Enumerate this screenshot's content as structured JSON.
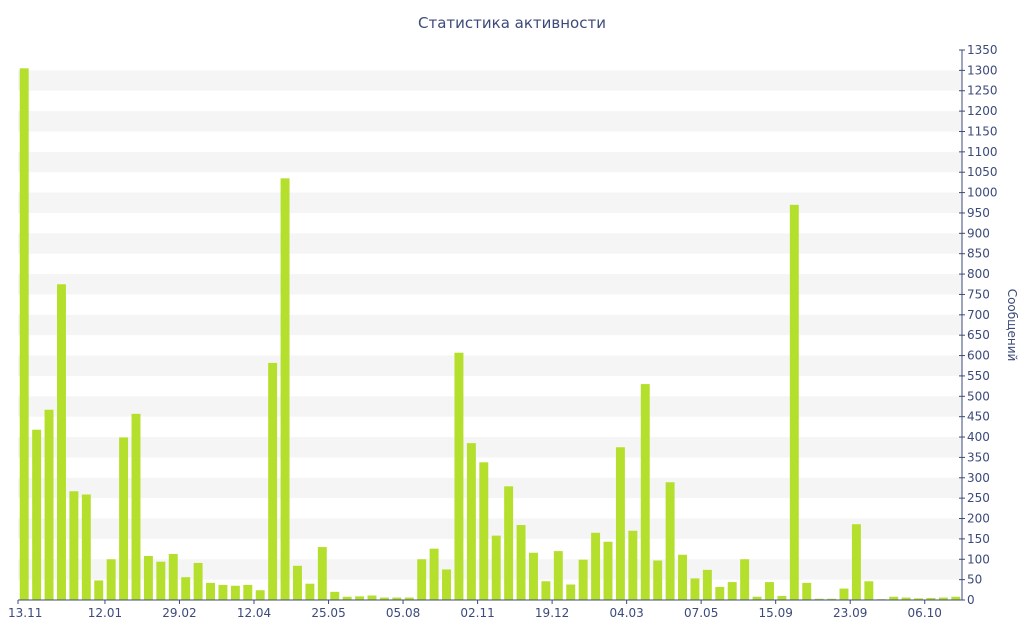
{
  "chart_data": {
    "type": "bar",
    "title": "Статистика активности",
    "ylabel": "Сообщений",
    "ylim": [
      0,
      1350
    ],
    "ytick_step": 50,
    "grid": "horizontal bands",
    "bar_color": "#b5df2d",
    "band_color": "#f5f5f5",
    "axis_color": "#3d4a7a",
    "x_tick_labels": [
      {
        "index": 0,
        "label": "13.11"
      },
      {
        "index": 6.5,
        "label": "12.01"
      },
      {
        "index": 12.5,
        "label": "29.02"
      },
      {
        "index": 18.5,
        "label": "12.04"
      },
      {
        "index": 24.5,
        "label": "25.05"
      },
      {
        "index": 30.5,
        "label": "05.08"
      },
      {
        "index": 36.5,
        "label": "02.11"
      },
      {
        "index": 42.5,
        "label": "19.12"
      },
      {
        "index": 48.5,
        "label": "04.03"
      },
      {
        "index": 54.5,
        "label": "07.05"
      },
      {
        "index": 60.5,
        "label": "15.09"
      },
      {
        "index": 66.5,
        "label": "23.09"
      },
      {
        "index": 72.5,
        "label": "06.10"
      }
    ],
    "values": [
      1305,
      418,
      467,
      775,
      267,
      259,
      48,
      100,
      399,
      457,
      108,
      94,
      113,
      56,
      91,
      42,
      37,
      35,
      37,
      24,
      582,
      1035,
      84,
      40,
      130,
      20,
      8,
      9,
      11,
      6,
      6,
      6,
      100,
      126,
      75,
      607,
      385,
      338,
      158,
      279,
      184,
      116,
      46,
      120,
      38,
      99,
      165,
      143,
      375,
      170,
      530,
      97,
      289,
      111,
      53,
      74,
      32,
      44,
      100,
      8,
      44,
      10,
      970,
      42,
      3,
      3,
      28,
      186,
      46,
      2,
      8,
      6,
      4,
      5,
      6,
      8
    ]
  }
}
